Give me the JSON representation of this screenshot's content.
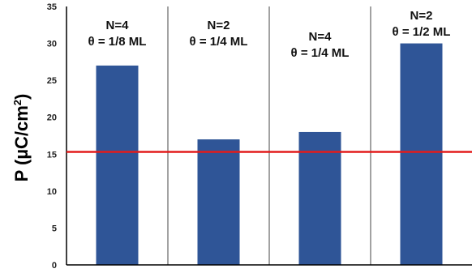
{
  "chart_data": {
    "type": "bar",
    "ylabel": "P (µC/cm",
    "ylabel_superscript": "2",
    "ylabel_close": ")",
    "ylim": [
      0,
      35
    ],
    "yticks": [
      0,
      5,
      10,
      15,
      20,
      25,
      30,
      35
    ],
    "categories": [
      {
        "line1": "N=4",
        "line2": "θ = 1/8 ML"
      },
      {
        "line1": "N=2",
        "line2": "θ = 1/4 ML"
      },
      {
        "line1": "N=4",
        "line2": "θ = 1/4 ML"
      },
      {
        "line1": "N=2",
        "line2": "θ = 1/2 ML"
      }
    ],
    "values": [
      27,
      17,
      18,
      30
    ],
    "reference_line": 15.3,
    "grid": false,
    "bar_color": "#2f5597",
    "reference_line_color": "#e31b1b"
  }
}
